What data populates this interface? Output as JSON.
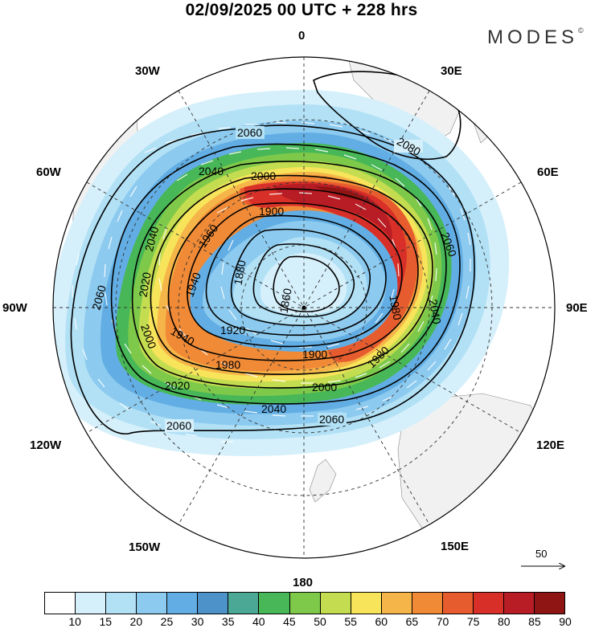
{
  "title": "02/09/2025  00 UTC  + 228 hrs",
  "brand": "MODES",
  "brand_mark": "©",
  "longitude_labels": {
    "lon_0": "0",
    "lon_30e": "30E",
    "lon_60e": "60E",
    "lon_90e": "90E",
    "lon_120e": "120E",
    "lon_150e": "150E",
    "lon_180": "180",
    "lon_150w": "150W",
    "lon_120w": "120W",
    "lon_90w": "90W",
    "lon_60w": "60W",
    "lon_30w": "30W"
  },
  "contour_labels": {
    "c2080": "2080",
    "c2060": "2060",
    "c2040": "2040",
    "c2020": "2020",
    "c2000": "2000",
    "c1980": "1980",
    "c1960": "1960",
    "c1940": "1940",
    "c1920": "1920",
    "c1900": "1900",
    "c1880": "1880",
    "c1860": "1860"
  },
  "wind_scale": {
    "label": "50"
  },
  "colorbar": {
    "values": [
      "10",
      "15",
      "20",
      "25",
      "30",
      "35",
      "40",
      "45",
      "50",
      "55",
      "60",
      "65",
      "70",
      "75",
      "80",
      "85",
      "90"
    ],
    "colors": [
      "#ffffff",
      "#d6f0fb",
      "#b2e1f6",
      "#8ccaef",
      "#62aee4",
      "#4d92c9",
      "#4aa894",
      "#47b757",
      "#7ec94a",
      "#c3dc50",
      "#f7e45a",
      "#f6b548",
      "#f08a36",
      "#e75c2e",
      "#d83028",
      "#b81c24",
      "#8f1515"
    ]
  }
}
